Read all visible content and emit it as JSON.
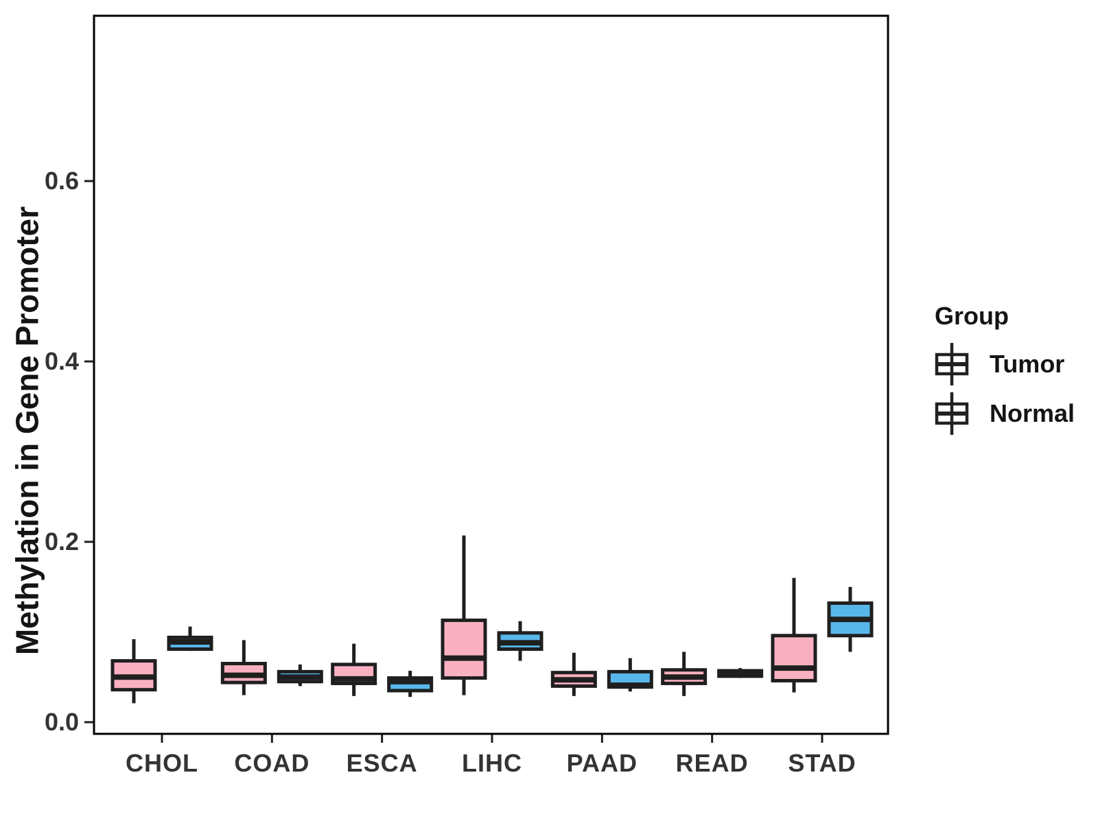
{
  "y_axis": {
    "label": "Methylation in Gene Promoter",
    "ticks": [
      {
        "value": 0.0,
        "label": "0.0"
      },
      {
        "value": 0.2,
        "label": "0.2"
      },
      {
        "value": 0.4,
        "label": "0.4"
      },
      {
        "value": 0.6,
        "label": "0.6"
      }
    ]
  },
  "x_axis": {
    "categories": [
      "CHOL",
      "COAD",
      "ESCA",
      "LIHC",
      "PAAD",
      "READ",
      "STAD"
    ]
  },
  "legend": {
    "title": "Group",
    "items": [
      {
        "label": "Tumor",
        "color": "#F9B1C1"
      },
      {
        "label": "Normal",
        "color": "#58B7EA"
      }
    ]
  },
  "colors": {
    "tumor_fill": "#F9B1C1",
    "normal_fill": "#58B7EA",
    "line": "#1F1F1F",
    "axis_text": "#333333",
    "panel_border": "#000000"
  },
  "chart_data": {
    "type": "boxplot",
    "title": "",
    "xlabel": "",
    "ylabel": "Methylation in Gene Promoter",
    "ylim": [
      0,
      0.78
    ],
    "grid": false,
    "legend_position": "right",
    "legend_title": "Group",
    "categories": [
      "CHOL",
      "COAD",
      "ESCA",
      "LIHC",
      "PAAD",
      "READ",
      "STAD"
    ],
    "series": [
      {
        "name": "Tumor",
        "color": "#F9B1C1",
        "boxes": [
          {
            "min": 0.021,
            "q1": 0.036,
            "median": 0.05,
            "q3": 0.068,
            "max": 0.092
          },
          {
            "min": 0.03,
            "q1": 0.044,
            "median": 0.052,
            "q3": 0.065,
            "max": 0.091
          },
          {
            "min": 0.029,
            "q1": 0.043,
            "median": 0.048,
            "q3": 0.064,
            "max": 0.087
          },
          {
            "min": 0.03,
            "q1": 0.049,
            "median": 0.071,
            "q3": 0.113,
            "max": 0.207
          },
          {
            "min": 0.029,
            "q1": 0.04,
            "median": 0.047,
            "q3": 0.055,
            "max": 0.077
          },
          {
            "min": 0.029,
            "q1": 0.043,
            "median": 0.05,
            "q3": 0.058,
            "max": 0.078
          },
          {
            "min": 0.033,
            "q1": 0.046,
            "median": 0.06,
            "q3": 0.096,
            "max": 0.16
          }
        ]
      },
      {
        "name": "Normal",
        "color": "#58B7EA",
        "boxes": [
          {
            "min": 0.079,
            "q1": 0.081,
            "median": 0.089,
            "q3": 0.094,
            "max": 0.106
          },
          {
            "min": 0.04,
            "q1": 0.045,
            "median": 0.05,
            "q3": 0.056,
            "max": 0.064
          },
          {
            "min": 0.028,
            "q1": 0.035,
            "median": 0.045,
            "q3": 0.049,
            "max": 0.057
          },
          {
            "min": 0.068,
            "q1": 0.081,
            "median": 0.088,
            "q3": 0.099,
            "max": 0.112
          },
          {
            "min": 0.034,
            "q1": 0.039,
            "median": 0.041,
            "q3": 0.056,
            "max": 0.071
          },
          {
            "min": 0.049,
            "q1": 0.051,
            "median": 0.053,
            "q3": 0.057,
            "max": 0.06
          },
          {
            "min": 0.078,
            "q1": 0.096,
            "median": 0.114,
            "q3": 0.132,
            "max": 0.15
          }
        ]
      }
    ]
  }
}
